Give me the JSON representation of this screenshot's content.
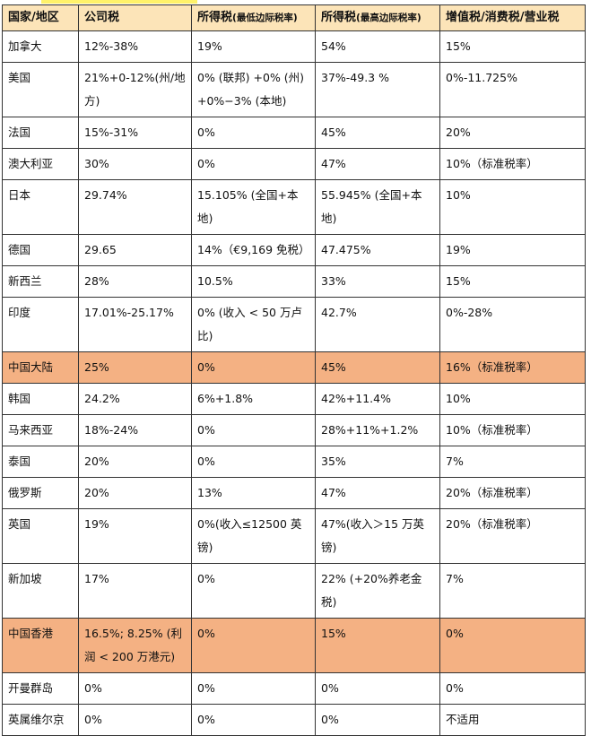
{
  "headers": [
    "国家/地区",
    "公司税",
    "所得税",
    "所得税",
    "增值税/消费税/营业税"
  ],
  "header_notes": [
    "",
    "",
    "(最低边际税率)",
    "(最高边际税率)",
    ""
  ],
  "highlight_color": "#f4b183",
  "header_color": "#fce4b8",
  "rows": [
    {
      "c": [
        "加拿大",
        "12%-38%",
        "19%",
        "54%",
        "15%"
      ],
      "hl": false
    },
    {
      "c": [
        "美国",
        "21%+0-12%(州/地方)",
        "0% (联邦) +0% (州) +0%−3% (本地)",
        "37%-49.3 %",
        "0%-11.725%"
      ],
      "hl": false
    },
    {
      "c": [
        "法国",
        "15%-31%",
        "0%",
        "45%",
        "20%"
      ],
      "hl": false
    },
    {
      "c": [
        "澳大利亚",
        "30%",
        "0%",
        "47%",
        "10%（标准税率）"
      ],
      "hl": false
    },
    {
      "c": [
        "日本",
        "29.74%",
        "15.105% (全国+本地)",
        "55.945% (全国+本地)",
        "10%"
      ],
      "hl": false
    },
    {
      "c": [
        "德国",
        "29.65",
        "14%（€9,169 免税）",
        "47.475%",
        "19%"
      ],
      "hl": false
    },
    {
      "c": [
        "新西兰",
        "28%",
        "10.5%",
        "33%",
        "15%"
      ],
      "hl": false
    },
    {
      "c": [
        "印度",
        "17.01%-25.17%",
        "0% (收入 < 50 万卢比)",
        "42.7%",
        "0%-28%"
      ],
      "hl": false
    },
    {
      "c": [
        "中国大陆",
        "25%",
        "0%",
        "45%",
        "16%（标准税率）"
      ],
      "hl": true
    },
    {
      "c": [
        "韩国",
        "24.2%",
        "6%+1.8%",
        "42%+11.4%",
        "10%"
      ],
      "hl": false
    },
    {
      "c": [
        "马来西亚",
        "18%-24%",
        "0%",
        "28%+11%+1.2%",
        "10%（标准税率）"
      ],
      "hl": false
    },
    {
      "c": [
        "泰国",
        "20%",
        "0%",
        "35%",
        "7%"
      ],
      "hl": false
    },
    {
      "c": [
        "俄罗斯",
        "20%",
        "13%",
        "47%",
        "20%（标准税率）"
      ],
      "hl": false
    },
    {
      "c": [
        "英国",
        "19%",
        "0%(收入≤12500 英镑)",
        "47%(收入＞15 万英镑)",
        "20%（标准税率）"
      ],
      "hl": false
    },
    {
      "c": [
        "新加坡",
        "17%",
        "0%",
        "22% (+20%养老金税)",
        "7%"
      ],
      "hl": false
    },
    {
      "c": [
        "中国香港",
        "16.5%; 8.25% (利润 < 200 万港元)",
        "0%",
        "15%",
        "0%"
      ],
      "hl": true
    },
    {
      "c": [
        "开曼群岛",
        "0%",
        "0%",
        "0%",
        "0%"
      ],
      "hl": false
    },
    {
      "c": [
        "英属维尔京",
        "0%",
        "0%",
        "0%",
        "不适用"
      ],
      "hl": false
    }
  ]
}
